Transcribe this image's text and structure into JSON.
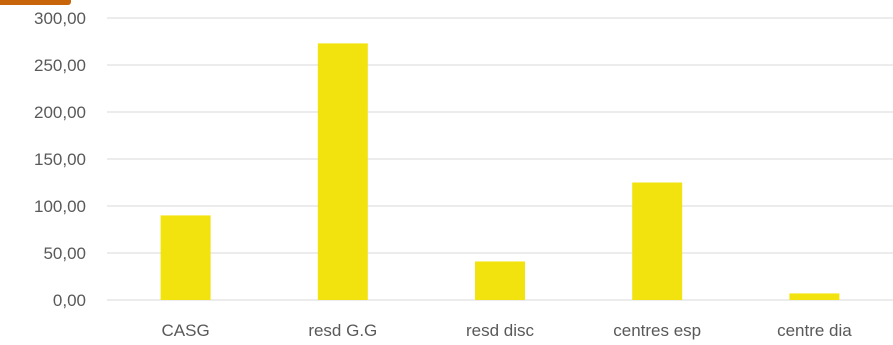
{
  "chart_data": {
    "type": "bar",
    "categories": [
      "CASG",
      "resd G.G",
      "resd disc",
      "centres esp",
      "centre dia"
    ],
    "values": [
      90,
      273,
      41,
      125,
      7
    ],
    "title": "",
    "xlabel": "",
    "ylabel": "",
    "ylim": [
      0,
      300
    ],
    "yticks": [
      0,
      50,
      100,
      150,
      200,
      250,
      300
    ],
    "ytick_labels": [
      "0,00",
      "50,00",
      "100,00",
      "150,00",
      "200,00",
      "250,00",
      "300,00"
    ],
    "grid": true,
    "legend": "none",
    "bar_color": "#f2e30f",
    "grid_color": "#d9d9d9",
    "text_color": "#595959"
  }
}
